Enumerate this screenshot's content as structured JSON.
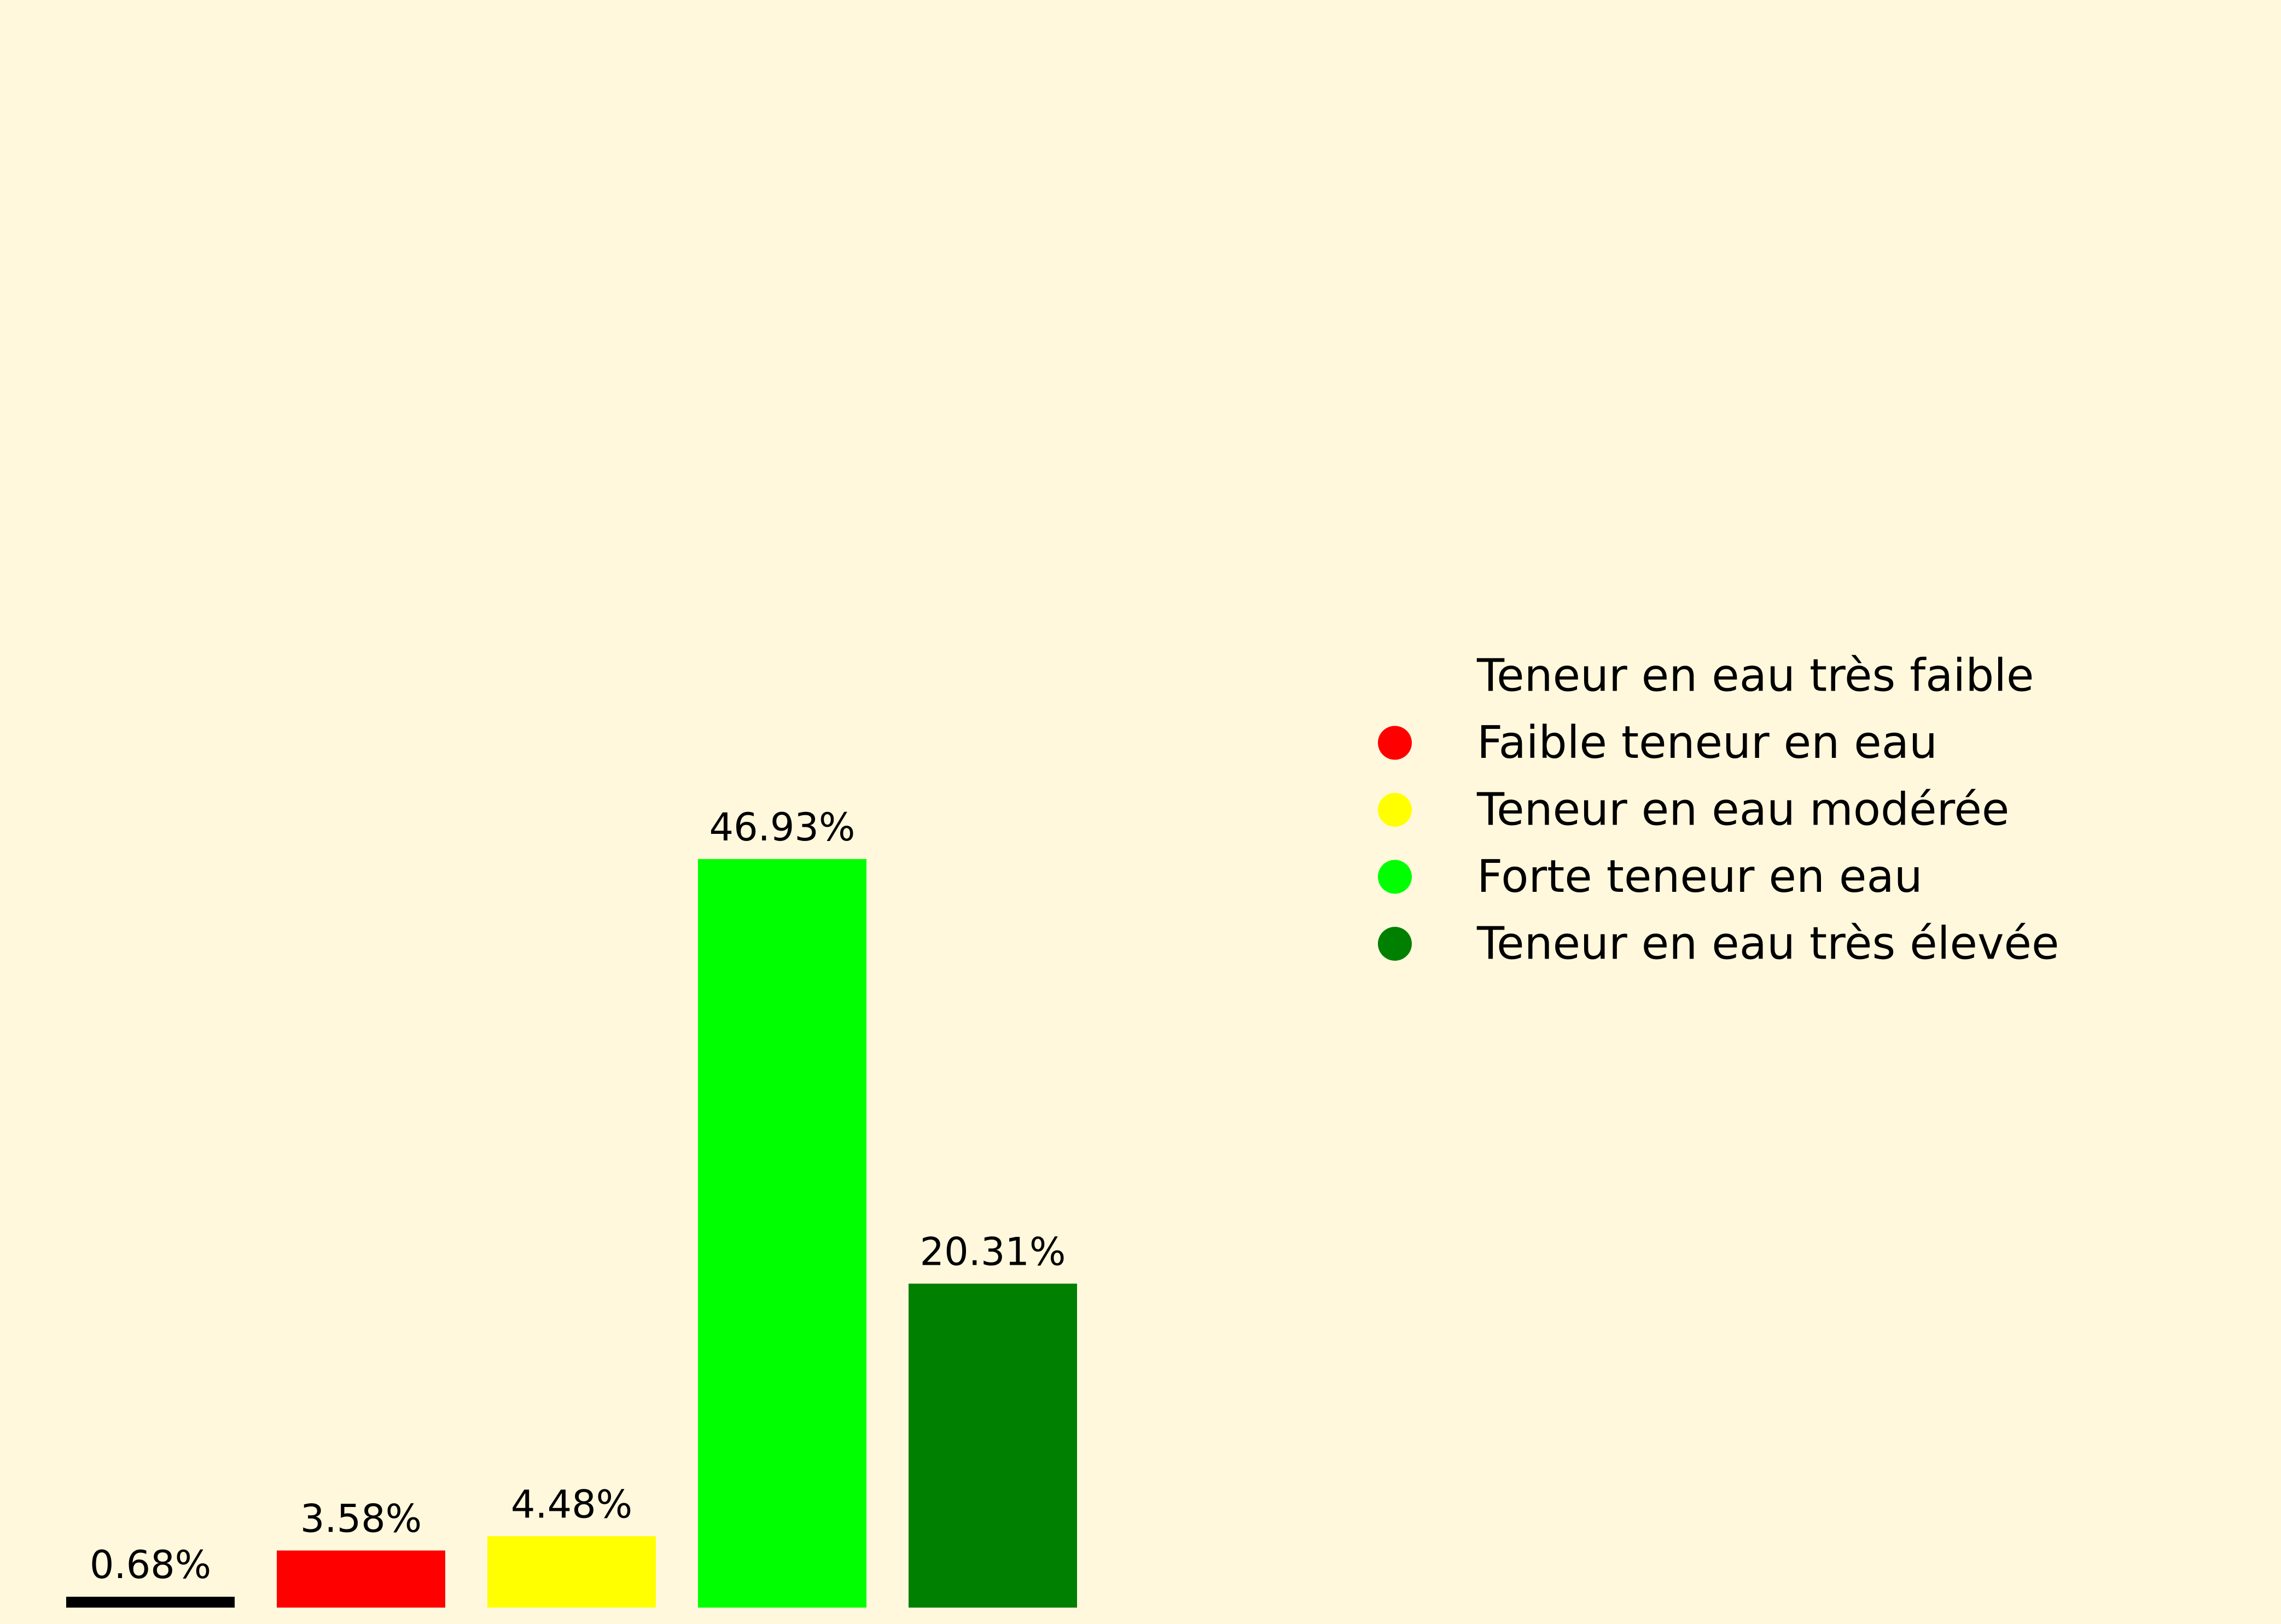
{
  "chart_data": {
    "type": "bar",
    "title": "",
    "xlabel": "",
    "ylabel": "",
    "ylim": [
      0,
      50
    ],
    "grid": false,
    "legend_position": "right",
    "categories": [
      "Teneur en eau très faible",
      "Faible teneur en eau",
      "Teneur en eau modérée",
      "Forte teneur en eau",
      "Teneur en eau très élevée"
    ],
    "values": [
      0.68,
      3.58,
      4.48,
      46.93,
      20.31
    ],
    "data_labels": [
      "0.68%",
      "3.58%",
      "4.48%",
      "46.93%",
      "20.31%"
    ],
    "colors": [
      "#000000",
      "#ff0000",
      "#ffff00",
      "#00ff00",
      "#008000"
    ],
    "legend": [
      {
        "label": "Teneur en eau très faible",
        "color": "#000000"
      },
      {
        "label": "Faible teneur en eau",
        "color": "#ff0000"
      },
      {
        "label": "Teneur en eau modérée",
        "color": "#ffff00"
      },
      {
        "label": "Forte teneur en eau",
        "color": "#00ff00"
      },
      {
        "label": "Teneur en eau très élevée",
        "color": "#008000"
      }
    ],
    "background_color": "#fff8dc"
  }
}
